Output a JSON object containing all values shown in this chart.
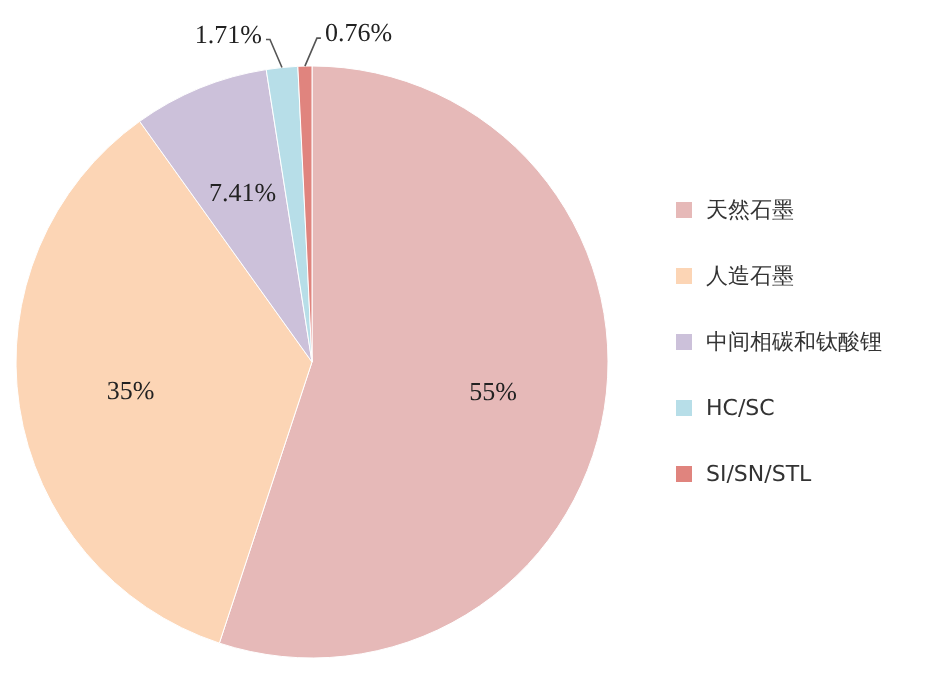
{
  "chart_data": {
    "type": "pie",
    "categories": [
      "天然石墨",
      "人造石墨",
      "中间相碳和钛酸锂",
      "HC/SC",
      "SI/SN/STL"
    ],
    "values": [
      55,
      35,
      7.41,
      1.71,
      0.76
    ],
    "colors": [
      "#e6b9b8",
      "#fcd5b5",
      "#ccc1da",
      "#b7dee8",
      "#e0847e"
    ],
    "value_labels": [
      "55%",
      "35%",
      "7.41%",
      "1.71%",
      "0.76%"
    ],
    "legend": "right"
  }
}
